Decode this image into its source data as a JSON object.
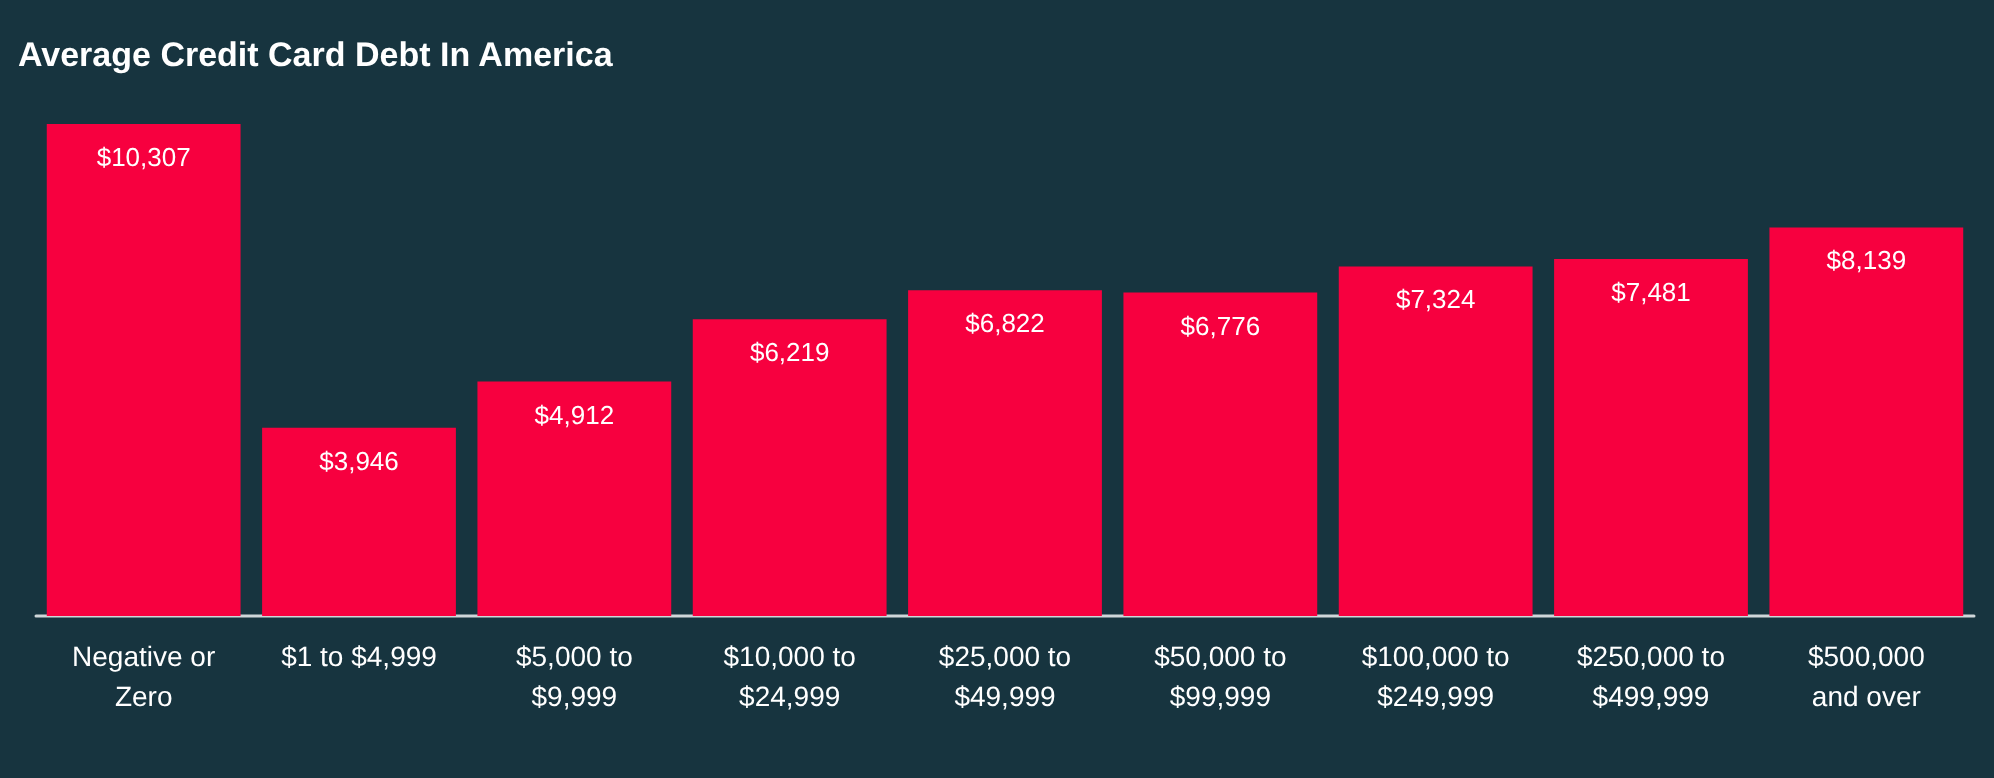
{
  "chart_data": {
    "type": "bar",
    "title": "Average Credit Card Debt In America",
    "categories": [
      "Negative or Zero",
      "$1 to $4,999",
      "$5,000 to $9,999",
      "$10,000 to $24,999",
      "$25,000 to $49,999",
      "$50,000 to $99,999",
      "$100,000 to $249,999",
      "$250,000 to $499,999",
      "$500,000 and over"
    ],
    "values": [
      10307,
      3946,
      4912,
      6219,
      6822,
      6776,
      7324,
      7481,
      8139
    ],
    "value_labels": [
      "$10,307",
      "$3,946",
      "$4,912",
      "$6,219",
      "$6,822",
      "$6,776",
      "$7,324",
      "$7,481",
      "$8,139"
    ],
    "color": "#f7003f"
  }
}
